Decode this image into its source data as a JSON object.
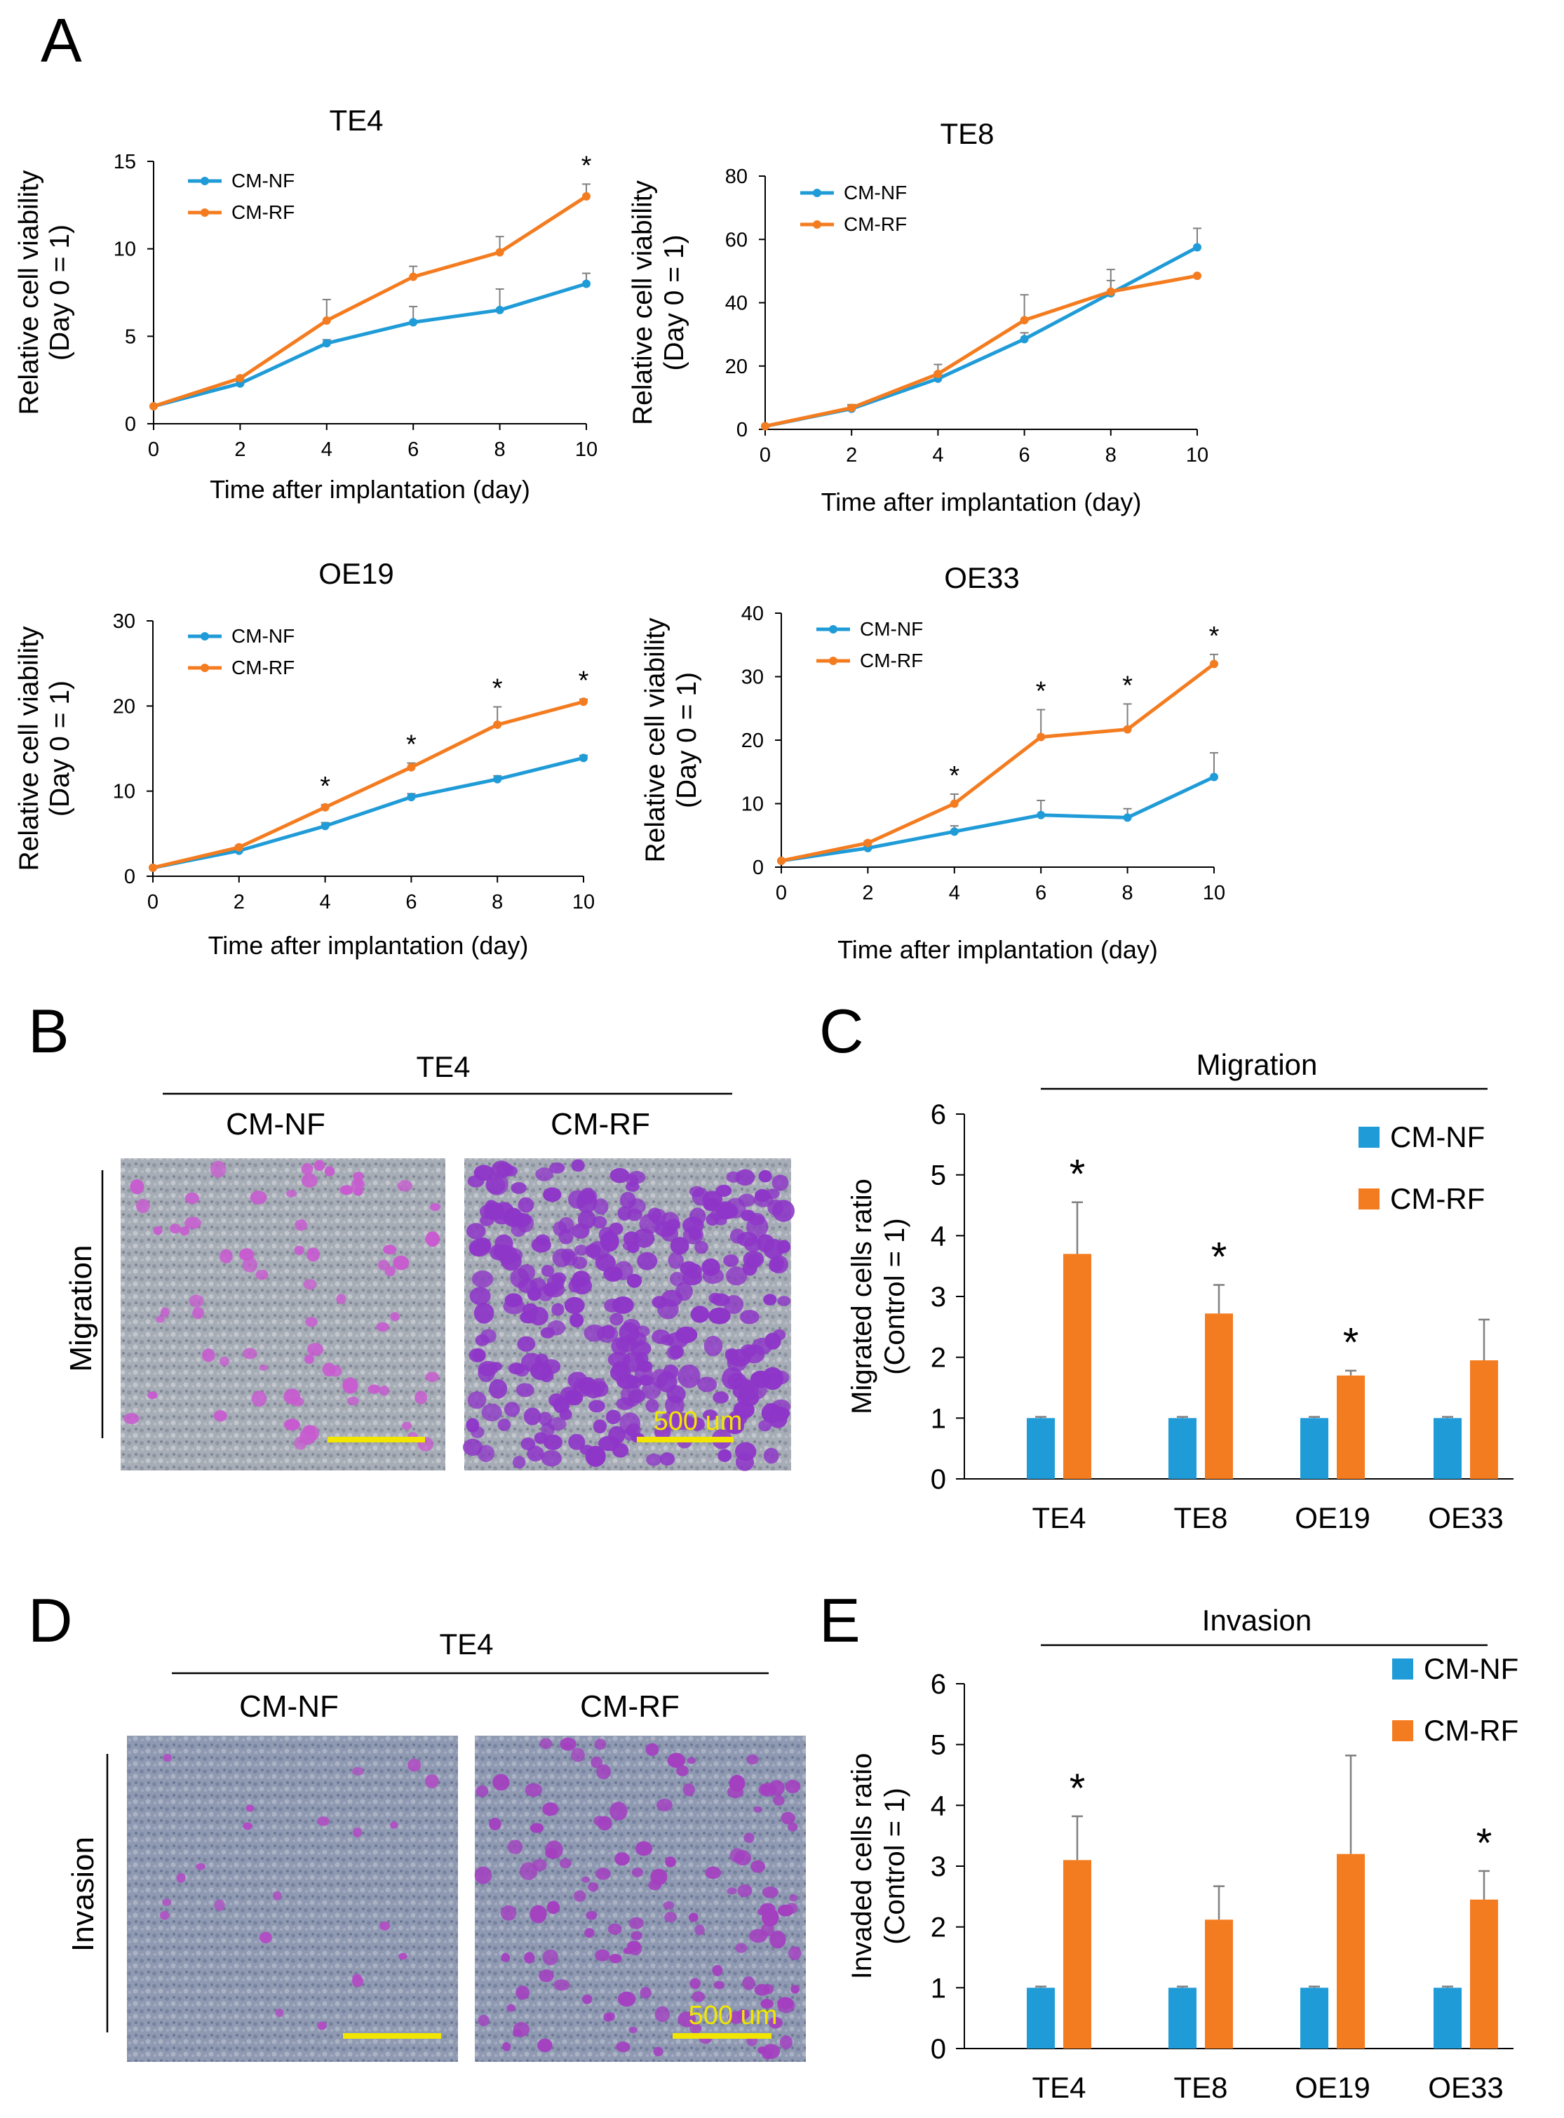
{
  "panels": {
    "A": {
      "letter": "A"
    },
    "B": {
      "letter": "B",
      "cell_line": "TE4",
      "left_label": "CM-NF",
      "right_label": "CM-RF",
      "row_label": "Migration",
      "scale_label": "500 um"
    },
    "C": {
      "letter": "C"
    },
    "D": {
      "letter": "D",
      "cell_line": "TE4",
      "left_label": "CM-NF",
      "right_label": "CM-RF",
      "row_label": "Invasion",
      "scale_label": "500 um"
    },
    "E": {
      "letter": "E"
    }
  },
  "colors": {
    "nf": "#1f9bd7",
    "rf": "#f47c20",
    "err": "#7f7f7f",
    "scalebar": "#f2e600"
  },
  "chart_data": [
    {
      "id": "A1",
      "type": "line",
      "title": "TE4",
      "xlabel": "Time after implantation (day)",
      "ylabel": [
        "Relative cell viability",
        "(Day 0 = 1)"
      ],
      "x": [
        0,
        2,
        4,
        6,
        8,
        10
      ],
      "xlim": [
        0,
        10
      ],
      "ylim": [
        0,
        15
      ],
      "yticks": [
        0,
        5,
        10,
        15
      ],
      "series": [
        {
          "name": "CM-NF",
          "values": [
            1,
            2.3,
            4.6,
            5.8,
            6.5,
            8.0
          ],
          "err": [
            0,
            0.1,
            0.2,
            0.9,
            1.2,
            0.6
          ]
        },
        {
          "name": "CM-RF",
          "values": [
            1,
            2.6,
            5.9,
            8.4,
            9.8,
            13.0
          ],
          "err": [
            0,
            0.1,
            1.2,
            0.6,
            0.9,
            0.7
          ]
        }
      ],
      "significance": [
        {
          "x": 10,
          "label": "*"
        }
      ]
    },
    {
      "id": "A2",
      "type": "line",
      "title": "TE8",
      "xlabel": "Time after implantation (day)",
      "ylabel": [
        "Relative cell viability",
        "(Day 0 = 1)"
      ],
      "x": [
        0,
        2,
        4,
        6,
        8,
        10
      ],
      "xlim": [
        0,
        10
      ],
      "ylim": [
        0,
        80
      ],
      "yticks": [
        0,
        20,
        40,
        60,
        80
      ],
      "series": [
        {
          "name": "CM-NF",
          "values": [
            1,
            6.5,
            16,
            28.5,
            43,
            57.5
          ],
          "err": [
            0,
            1,
            2,
            2,
            4,
            6
          ]
        },
        {
          "name": "CM-RF",
          "values": [
            1,
            6.8,
            17.5,
            34.5,
            43.5,
            48.5
          ],
          "err": [
            0,
            1,
            3,
            8,
            7,
            0
          ]
        }
      ],
      "significance": []
    },
    {
      "id": "A3",
      "type": "line",
      "title": "OE19",
      "xlabel": "Time after implantation (day)",
      "ylabel": [
        "Relative cell viability",
        "(Day 0 = 1)"
      ],
      "x": [
        0,
        2,
        4,
        6,
        8,
        10
      ],
      "xlim": [
        0,
        10
      ],
      "ylim": [
        0,
        30
      ],
      "yticks": [
        0,
        10,
        20,
        30
      ],
      "series": [
        {
          "name": "CM-NF",
          "values": [
            1,
            3.0,
            5.9,
            9.3,
            11.4,
            13.9
          ],
          "err": [
            0,
            0.2,
            0.4,
            0.4,
            0.4,
            0.3
          ]
        },
        {
          "name": "CM-RF",
          "values": [
            1,
            3.4,
            8.1,
            12.8,
            17.8,
            20.5
          ],
          "err": [
            0,
            0.2,
            0.3,
            0.5,
            2.1,
            0.3
          ]
        }
      ],
      "significance": [
        {
          "x": 4,
          "label": "*"
        },
        {
          "x": 6,
          "label": "*"
        },
        {
          "x": 8,
          "label": "*"
        },
        {
          "x": 10,
          "label": "*"
        }
      ]
    },
    {
      "id": "A4",
      "type": "line",
      "title": "OE33",
      "xlabel": "Time after implantation (day)",
      "ylabel": [
        "Relative cell viability",
        "(Day 0 = 1)"
      ],
      "x": [
        0,
        2,
        4,
        6,
        8,
        10
      ],
      "xlim": [
        0,
        10
      ],
      "ylim": [
        0,
        40
      ],
      "yticks": [
        0,
        10,
        20,
        30,
        40
      ],
      "series": [
        {
          "name": "CM-NF",
          "values": [
            1,
            3.0,
            5.6,
            8.2,
            7.8,
            14.2
          ],
          "err": [
            0,
            0.3,
            0.9,
            2.3,
            1.4,
            3.8
          ]
        },
        {
          "name": "CM-RF",
          "values": [
            1,
            3.8,
            10.0,
            20.5,
            21.7,
            32.0
          ],
          "err": [
            0,
            0.3,
            1.5,
            4.3,
            4.0,
            1.5
          ]
        }
      ],
      "significance": [
        {
          "x": 4,
          "label": "*"
        },
        {
          "x": 6,
          "label": "*"
        },
        {
          "x": 8,
          "label": "*"
        },
        {
          "x": 10,
          "label": "*"
        }
      ]
    },
    {
      "id": "C",
      "type": "bar",
      "title": "Migration",
      "ylabel": [
        "Migrated cells ratio",
        "(Control = 1)"
      ],
      "categories": [
        "TE4",
        "TE8",
        "OE19",
        "OE33"
      ],
      "ylim": [
        0,
        6
      ],
      "yticks": [
        0,
        1,
        2,
        3,
        4,
        5,
        6
      ],
      "series": [
        {
          "name": "CM-NF",
          "values": [
            1,
            1,
            1,
            1
          ],
          "err": [
            0.02,
            0.02,
            0.02,
            0.02
          ]
        },
        {
          "name": "CM-RF",
          "values": [
            3.7,
            2.72,
            1.7,
            1.95
          ],
          "err": [
            0.85,
            0.47,
            0.08,
            0.67
          ]
        }
      ],
      "significance": [
        "*",
        "*",
        "*",
        ""
      ]
    },
    {
      "id": "E",
      "type": "bar",
      "title": "Invasion",
      "ylabel": [
        "Invaded cells ratio",
        "(Control = 1)"
      ],
      "categories": [
        "TE4",
        "TE8",
        "OE19",
        "OE33"
      ],
      "ylim": [
        0,
        6
      ],
      "yticks": [
        0,
        1,
        2,
        3,
        4,
        5,
        6
      ],
      "series": [
        {
          "name": "CM-NF",
          "values": [
            1,
            1,
            1,
            1
          ],
          "err": [
            0.02,
            0.02,
            0.02,
            0.02
          ]
        },
        {
          "name": "CM-RF",
          "values": [
            3.1,
            2.12,
            3.2,
            2.45
          ],
          "err": [
            0.72,
            0.55,
            1.62,
            0.47
          ]
        }
      ],
      "significance": [
        "*",
        "",
        "",
        "*"
      ]
    }
  ]
}
